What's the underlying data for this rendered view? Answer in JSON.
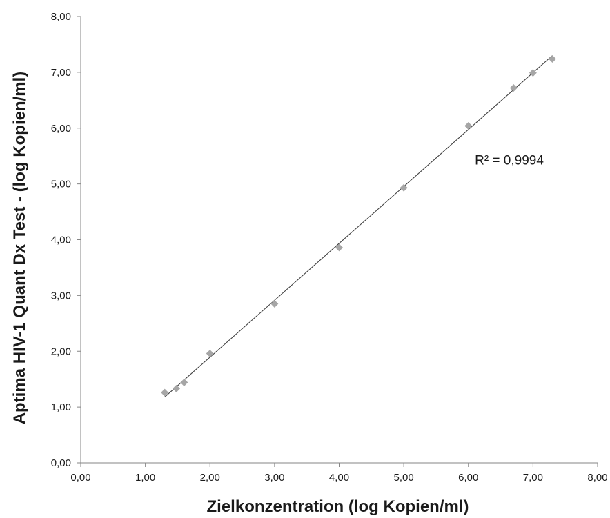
{
  "chart_data": {
    "type": "scatter",
    "xlabel": "Zielkonzentration (log Kopien/ml)",
    "ylabel": "Aptima HIV-1 Quant Dx Test - (log Kopien/ml)",
    "xlim": [
      0,
      8
    ],
    "ylim": [
      0,
      8
    ],
    "x_ticks": [
      "0,00",
      "1,00",
      "2,00",
      "3,00",
      "4,00",
      "5,00",
      "6,00",
      "7,00",
      "8,00"
    ],
    "y_ticks": [
      "0,00",
      "1,00",
      "2,00",
      "3,00",
      "4,00",
      "5,00",
      "6,00",
      "7,00",
      "8,00"
    ],
    "grid": false,
    "marker_color": "#a6a6a6",
    "trendline_color": "#404040",
    "points": [
      {
        "x": 1.3,
        "y": 1.26
      },
      {
        "x": 1.48,
        "y": 1.33
      },
      {
        "x": 1.6,
        "y": 1.44
      },
      {
        "x": 2.0,
        "y": 1.96
      },
      {
        "x": 3.0,
        "y": 2.85
      },
      {
        "x": 4.0,
        "y": 3.86
      },
      {
        "x": 5.0,
        "y": 4.93
      },
      {
        "x": 6.0,
        "y": 6.04
      },
      {
        "x": 6.7,
        "y": 6.72
      },
      {
        "x": 7.0,
        "y": 6.99
      },
      {
        "x": 7.3,
        "y": 7.24
      }
    ],
    "trendline": {
      "x": [
        1.3,
        7.3
      ],
      "y": [
        1.18,
        7.3
      ]
    },
    "annotation": {
      "text": "R² = 0,9994",
      "x": 6.1,
      "y": 5.35
    }
  }
}
